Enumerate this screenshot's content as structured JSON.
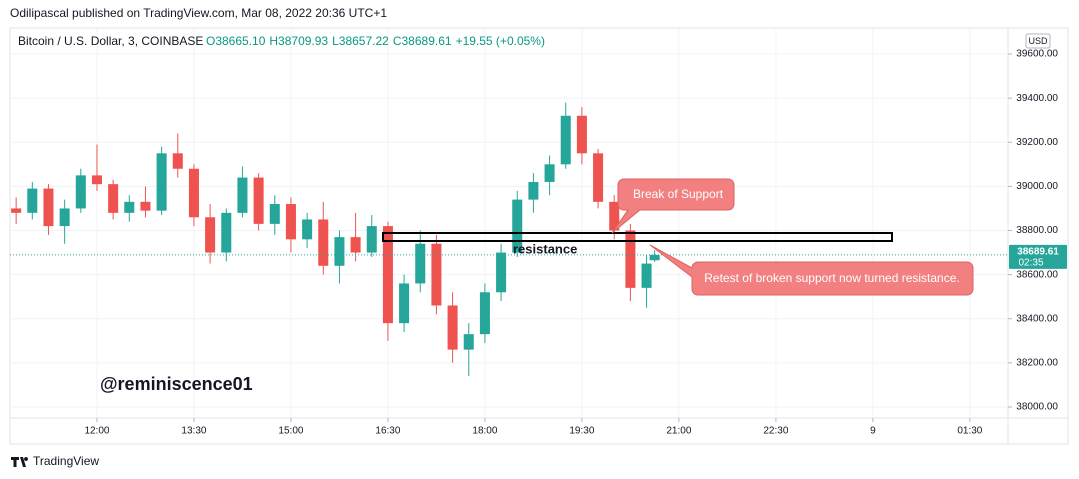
{
  "header": "Odilipascal published on TradingView.com, Mar 08, 2022 20:36 UTC+1",
  "footer": "TradingView",
  "chart_data": {
    "type": "candlestick",
    "title": "Bitcoin / U.S. Dollar, 3, COINBASE",
    "ohlc_legend": [
      "O38665.10",
      "H38709.93",
      "L38657.22",
      "C38689.61",
      "+19.55 (+0.05%)"
    ],
    "currency": "USD",
    "x": [
      10.75,
      11,
      11.25,
      11.5,
      11.75,
      12,
      12.25,
      12.5,
      12.75,
      13,
      13.25,
      13.5,
      13.75,
      14,
      14.25,
      14.5,
      14.75,
      15,
      15.25,
      15.5,
      15.75,
      16,
      16.25,
      16.5,
      16.75,
      17,
      17.25,
      17.5,
      17.75,
      18,
      18.25,
      18.5,
      18.75,
      19,
      19.25,
      19.5,
      19.75,
      20,
      20.25,
      20.5,
      20.625
    ],
    "open": [
      38900,
      38880,
      38990,
      38820,
      38900,
      39050,
      39010,
      38880,
      38930,
      38890,
      39150,
      39080,
      38860,
      38700,
      38880,
      39040,
      38830,
      38920,
      38760,
      38850,
      38640,
      38770,
      38700,
      38820,
      38380,
      38560,
      38740,
      38460,
      38260,
      38330,
      38520,
      38700,
      38940,
      39020,
      39100,
      39320,
      39150,
      38930,
      38800,
      38540,
      38665.1
    ],
    "high": [
      38950,
      39020,
      39010,
      38940,
      39080,
      39190,
      39030,
      38960,
      39000,
      39180,
      39240,
      39100,
      38920,
      38900,
      39090,
      39060,
      38960,
      38950,
      38880,
      38930,
      38800,
      38880,
      38870,
      38840,
      38600,
      38800,
      38780,
      38520,
      38380,
      38560,
      38740,
      38980,
      39060,
      39140,
      39380,
      39360,
      39170,
      38960,
      38830,
      38690,
      38709.93
    ],
    "low": [
      38830,
      38850,
      38780,
      38740,
      38880,
      38980,
      38850,
      38840,
      38860,
      38870,
      39040,
      38820,
      38650,
      38660,
      38860,
      38800,
      38780,
      38700,
      38720,
      38600,
      38560,
      38660,
      38680,
      38300,
      38340,
      38520,
      38420,
      38200,
      38140,
      38290,
      38480,
      38680,
      38880,
      38960,
      39080,
      39100,
      38900,
      38760,
      38480,
      38450,
      38657.22
    ],
    "close": [
      38880,
      38990,
      38820,
      38900,
      39050,
      39010,
      38880,
      38930,
      38890,
      39150,
      39080,
      38860,
      38700,
      38880,
      39040,
      38830,
      38920,
      38760,
      38850,
      38640,
      38770,
      38700,
      38820,
      38380,
      38560,
      38740,
      38460,
      38260,
      38330,
      38520,
      38700,
      38940,
      39020,
      39100,
      39320,
      39150,
      38930,
      38800,
      38540,
      38650,
      38689.61
    ],
    "up_color": "#26a69a",
    "down_color": "#ef5350",
    "last_price_label": "38689.61",
    "countdown": "02:35",
    "xlim": [
      10.655,
      26.09
    ],
    "xticks": [
      {
        "value": 12,
        "label": "12:00"
      },
      {
        "value": 13.5,
        "label": "13:30"
      },
      {
        "value": 15,
        "label": "15:00"
      },
      {
        "value": 16.5,
        "label": "16:30"
      },
      {
        "value": 18,
        "label": "18:00"
      },
      {
        "value": 19.5,
        "label": "19:30"
      },
      {
        "value": 21,
        "label": "21:00"
      },
      {
        "value": 22.5,
        "label": "22:30"
      },
      {
        "value": 24,
        "label": "9"
      },
      {
        "value": 25.5,
        "label": "01:30"
      }
    ],
    "ylim": [
      37950,
      39718
    ],
    "yticks": [
      {
        "value": 38000,
        "label": "38000.00"
      },
      {
        "value": 38200,
        "label": "38200.00"
      },
      {
        "value": 38400,
        "label": "38400.00"
      },
      {
        "value": 38600,
        "label": "38600.00"
      },
      {
        "value": 38800,
        "label": "38800.00"
      },
      {
        "value": 39000,
        "label": "39000.00"
      },
      {
        "value": 39200,
        "label": "39200.00"
      },
      {
        "value": 39400,
        "label": "39400.00"
      },
      {
        "value": 39600,
        "label": "39600.00"
      }
    ],
    "grid": true,
    "annotations": [
      "Break of Support",
      "Retest of broken support now turned resistance.",
      "resistance",
      "@reminiscence01"
    ]
  }
}
